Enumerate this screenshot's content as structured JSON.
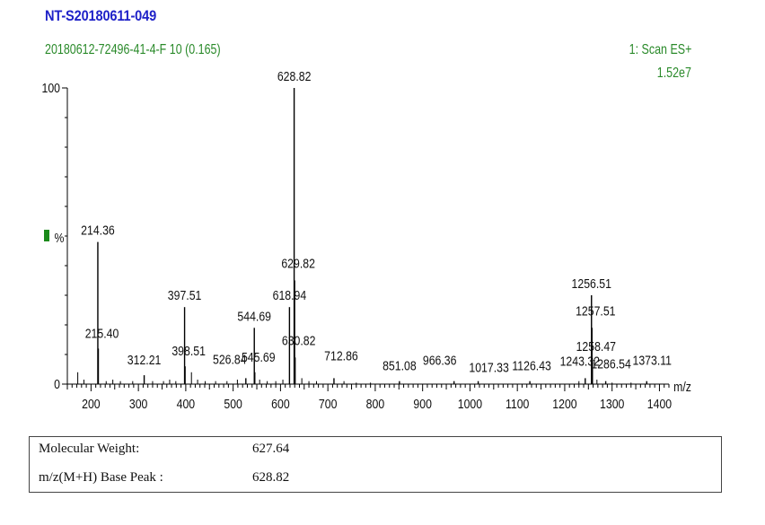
{
  "header": {
    "sample_id": "NT-S20180611-049",
    "run_info": "20180612-72496-41-4-F 10 (0.165)",
    "scan_mode": "1: Scan ES+",
    "max_intensity": "1.52e7"
  },
  "chart_data": {
    "type": "bar",
    "title": "",
    "xlabel": "m/z",
    "ylabel": "%",
    "xlim": [
      150,
      1420
    ],
    "ylim": [
      0,
      100
    ],
    "x_ticks": [
      200,
      300,
      400,
      500,
      600,
      700,
      800,
      900,
      1000,
      1100,
      1200,
      1300,
      1400
    ],
    "y_ticks": [
      0,
      100
    ],
    "colors": {
      "peaks": "#000000",
      "text": "#111111",
      "marker": "#1a8a1a"
    },
    "labeled_peaks": [
      {
        "mz": 214.36,
        "intensity": 48,
        "label": "214.36"
      },
      {
        "mz": 215.4,
        "intensity": 12,
        "label": "215.40"
      },
      {
        "mz": 312.21,
        "intensity": 3,
        "label": "312.21"
      },
      {
        "mz": 397.51,
        "intensity": 26,
        "label": "397.51"
      },
      {
        "mz": 398.51,
        "intensity": 6,
        "label": "398.51"
      },
      {
        "mz": 526.84,
        "intensity": 2,
        "label": "526.84"
      },
      {
        "mz": 544.69,
        "intensity": 19,
        "label": "544.69"
      },
      {
        "mz": 545.69,
        "intensity": 4,
        "label": "545.69"
      },
      {
        "mz": 618.94,
        "intensity": 26,
        "label": "618.94"
      },
      {
        "mz": 628.82,
        "intensity": 100,
        "label": "628.82"
      },
      {
        "mz": 629.82,
        "intensity": 35,
        "label": "629.82"
      },
      {
        "mz": 630.82,
        "intensity": 9,
        "label": "630.82"
      },
      {
        "mz": 712.86,
        "intensity": 2,
        "label": "712.86"
      },
      {
        "mz": 851.08,
        "intensity": 1,
        "label": "851.08"
      },
      {
        "mz": 966.36,
        "intensity": 1,
        "label": "966.36"
      },
      {
        "mz": 1017.33,
        "intensity": 1,
        "label": "1017.33"
      },
      {
        "mz": 1126.43,
        "intensity": 1,
        "label": "1126.43"
      },
      {
        "mz": 1243.32,
        "intensity": 2,
        "label": "1243.32"
      },
      {
        "mz": 1256.51,
        "intensity": 30,
        "label": "1256.51"
      },
      {
        "mz": 1257.51,
        "intensity": 19,
        "label": "1257.51"
      },
      {
        "mz": 1258.47,
        "intensity": 7,
        "label": "1258.47"
      },
      {
        "mz": 1286.54,
        "intensity": 1,
        "label": "1286.54"
      },
      {
        "mz": 1373.11,
        "intensity": 1,
        "label": "1373.11"
      }
    ],
    "minor_peaks": [
      {
        "mz": 172,
        "intensity": 4
      },
      {
        "mz": 185,
        "intensity": 1.5
      },
      {
        "mz": 232,
        "intensity": 1
      },
      {
        "mz": 246,
        "intensity": 1.5
      },
      {
        "mz": 262,
        "intensity": 1
      },
      {
        "mz": 288,
        "intensity": 1
      },
      {
        "mz": 330,
        "intensity": 1
      },
      {
        "mz": 353,
        "intensity": 1
      },
      {
        "mz": 366,
        "intensity": 1.5
      },
      {
        "mz": 379,
        "intensity": 1
      },
      {
        "mz": 412,
        "intensity": 4
      },
      {
        "mz": 425,
        "intensity": 1.5
      },
      {
        "mz": 441,
        "intensity": 1
      },
      {
        "mz": 463,
        "intensity": 1
      },
      {
        "mz": 487,
        "intensity": 1
      },
      {
        "mz": 509,
        "intensity": 1.5
      },
      {
        "mz": 556,
        "intensity": 1.5
      },
      {
        "mz": 572,
        "intensity": 1
      },
      {
        "mz": 590,
        "intensity": 1
      },
      {
        "mz": 605,
        "intensity": 1.5
      },
      {
        "mz": 645,
        "intensity": 2
      },
      {
        "mz": 660,
        "intensity": 1
      },
      {
        "mz": 676,
        "intensity": 1
      },
      {
        "mz": 734,
        "intensity": 1
      },
      {
        "mz": 760,
        "intensity": 0.5
      },
      {
        "mz": 790,
        "intensity": 0.5
      },
      {
        "mz": 1230,
        "intensity": 1
      },
      {
        "mz": 1268,
        "intensity": 1.5
      },
      {
        "mz": 1300,
        "intensity": 0.5
      },
      {
        "mz": 1340,
        "intensity": 0.5
      }
    ]
  },
  "info_table": {
    "rows": [
      {
        "label": "Molecular Weight:",
        "value": "627.64"
      },
      {
        "label": "m/z(M+H) Base Peak :",
        "value": "628.82"
      }
    ]
  }
}
